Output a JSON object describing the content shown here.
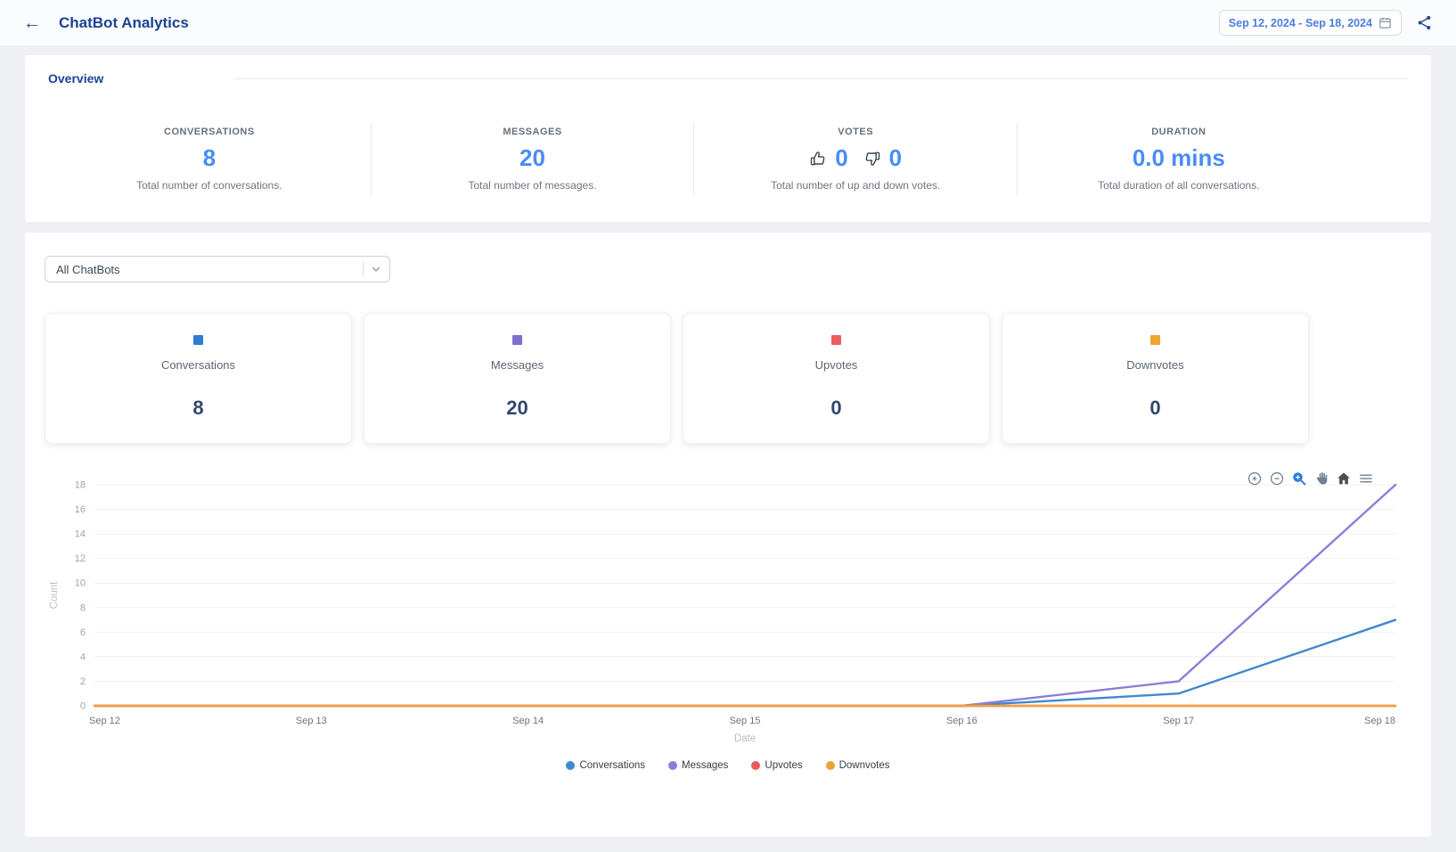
{
  "header": {
    "back_glyph": "←",
    "title": "ChatBot Analytics",
    "date_range": "Sep 12, 2024 - Sep 18, 2024"
  },
  "icons": {
    "back": "arrow-left",
    "calendar": "calendar",
    "share": "share-nodes",
    "dropdown": "chevron-down",
    "votes_up": "thumbs-up",
    "votes_down": "thumbs-down",
    "chart_toolbar": [
      "zoom-in",
      "zoom-out",
      "selection-zoom",
      "pan",
      "home",
      "menu"
    ]
  },
  "overview": {
    "title": "Overview",
    "conversations": {
      "label": "CONVERSATIONS",
      "value": "8",
      "desc": "Total number of conversations."
    },
    "messages": {
      "label": "MESSAGES",
      "value": "20",
      "desc": "Total number of messages."
    },
    "votes": {
      "label": "VOTES",
      "up": "0",
      "down": "0",
      "desc": "Total number of up and down votes."
    },
    "duration": {
      "label": "DURATION",
      "value": "0.0 mins",
      "desc": "Total duration of all conversations."
    }
  },
  "filters": {
    "chatbot_select_value": "All ChatBots"
  },
  "summary_cards": [
    {
      "label": "Conversations",
      "value": "8",
      "color": "#2d7dd2"
    },
    {
      "label": "Messages",
      "value": "20",
      "color": "#7f6fd0"
    },
    {
      "label": "Upvotes",
      "value": "0",
      "color": "#ee5d5d"
    },
    {
      "label": "Downvotes",
      "value": "0",
      "color": "#f0a62e"
    }
  ],
  "chart_data": {
    "type": "line",
    "x": [
      "Sep 12",
      "Sep 13",
      "Sep 14",
      "Sep 15",
      "Sep 16",
      "Sep 17",
      "Sep 18"
    ],
    "series": [
      {
        "name": "Conversations",
        "color": "#3e89cf",
        "values": [
          0,
          0,
          0,
          0,
          0,
          1,
          7
        ]
      },
      {
        "name": "Messages",
        "color": "#8b7ed8",
        "values": [
          0,
          0,
          0,
          0,
          0,
          2,
          18
        ]
      },
      {
        "name": "Upvotes",
        "color": "#ee5a5a",
        "values": [
          0,
          0,
          0,
          0,
          0,
          0,
          0
        ]
      },
      {
        "name": "Downvotes",
        "color": "#f0a13a",
        "values": [
          0,
          0,
          0,
          0,
          0,
          0,
          0
        ]
      }
    ],
    "xlabel": "Date",
    "ylabel": "Count",
    "ylim": [
      0,
      18
    ],
    "ytick_step": 2,
    "grid": true,
    "legend_position": "bottom"
  }
}
